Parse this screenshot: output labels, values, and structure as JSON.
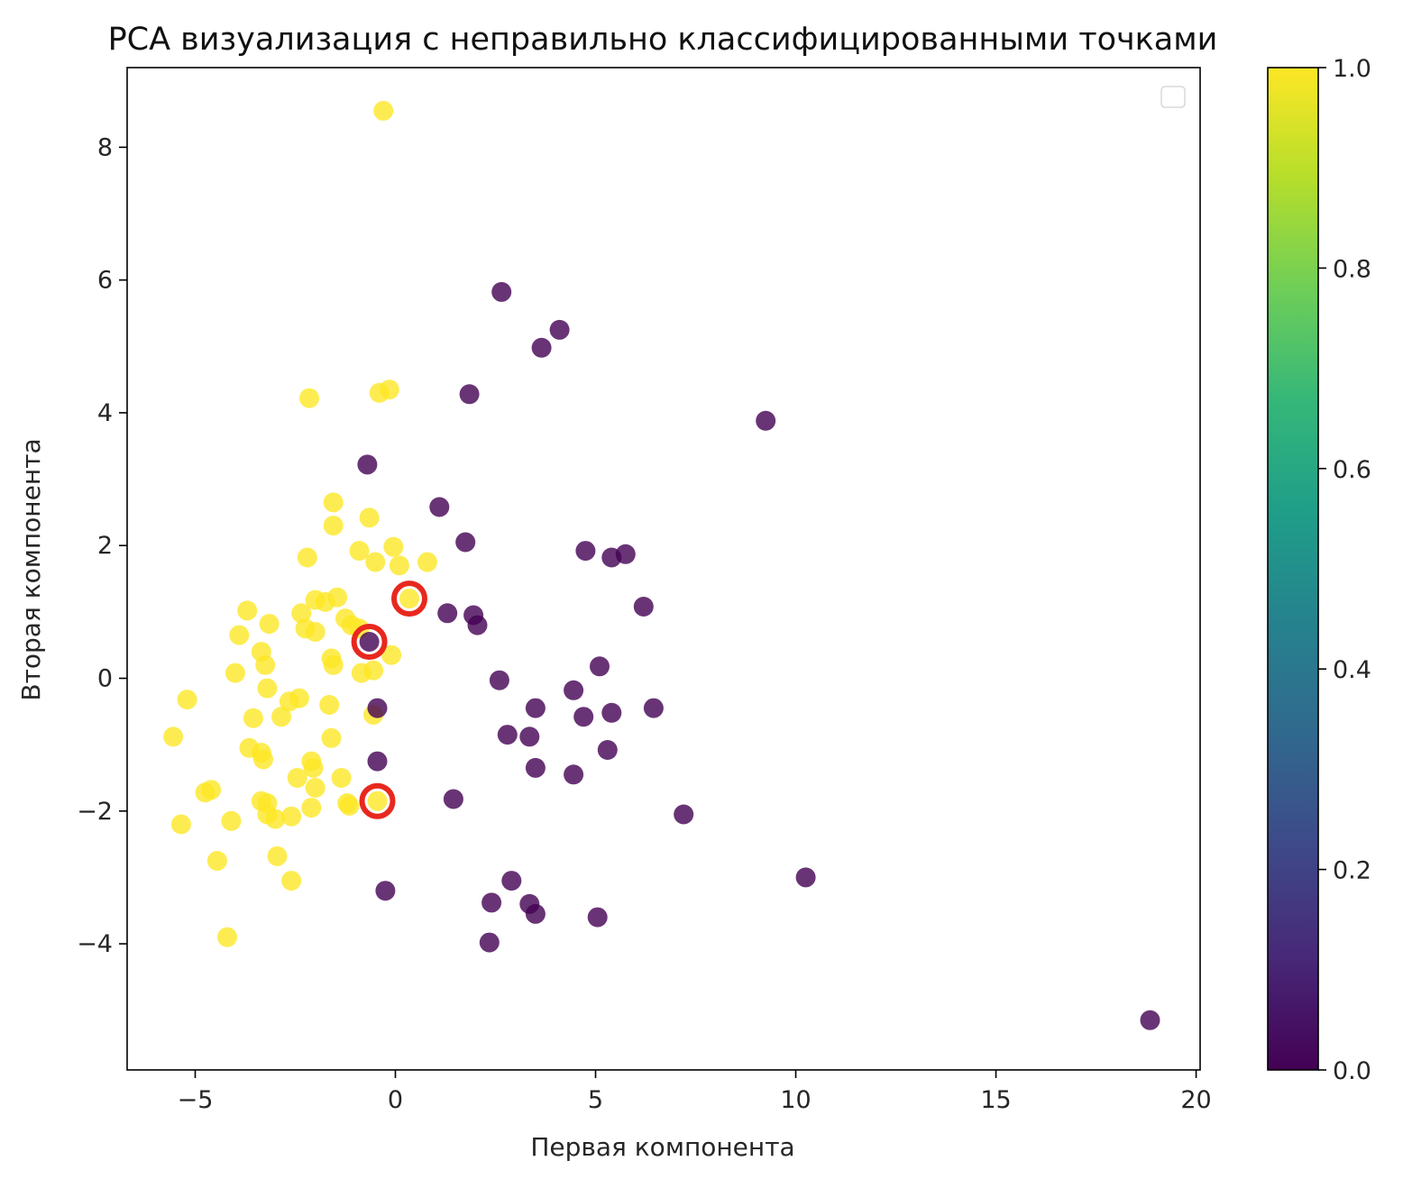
{
  "chart_data": {
    "type": "scatter",
    "title": "PCA визуализация с неправильно классифицированными точками",
    "xlabel": "Первая компонента",
    "ylabel": "Вторая компонента",
    "xlim": [
      -6.7,
      20.1
    ],
    "ylim": [
      -5.9,
      9.2
    ],
    "xticks": [
      -5,
      0,
      5,
      10,
      15,
      20
    ],
    "xtick_labels": [
      "−5",
      "0",
      "5",
      "10",
      "15",
      "20"
    ],
    "yticks": [
      -4,
      -2,
      0,
      2,
      4,
      6,
      8
    ],
    "ytick_labels": [
      "−4",
      "−2",
      "0",
      "2",
      "4",
      "6",
      "8"
    ],
    "grid": false,
    "legend": "top-right (empty)",
    "colormap": "viridis",
    "colorbar": {
      "range": [
        0.0,
        1.0
      ],
      "ticks": [
        0.0,
        0.2,
        0.4,
        0.6,
        0.8,
        1.0
      ],
      "tick_labels": [
        "0.0",
        "0.2",
        "0.4",
        "0.6",
        "0.8",
        "1.0"
      ],
      "colors": [
        "#440154",
        "#482878",
        "#3e4989",
        "#31688e",
        "#26828e",
        "#1f9e89",
        "#35b779",
        "#6ece58",
        "#b5de2b",
        "#fde725"
      ]
    },
    "series": [
      {
        "class_value": 1,
        "color": "#fde725",
        "points": [
          [
            -0.3,
            8.55
          ],
          [
            -2.15,
            4.22
          ],
          [
            -0.4,
            4.3
          ],
          [
            -0.15,
            4.35
          ],
          [
            -1.55,
            2.65
          ],
          [
            -0.65,
            2.42
          ],
          [
            -1.55,
            2.3
          ],
          [
            -0.9,
            1.92
          ],
          [
            -0.05,
            1.98
          ],
          [
            -2.2,
            1.82
          ],
          [
            -0.5,
            1.75
          ],
          [
            0.1,
            1.7
          ],
          [
            0.8,
            1.75
          ],
          [
            -2.0,
            1.18
          ],
          [
            -1.75,
            1.15
          ],
          [
            -1.45,
            1.22
          ],
          [
            -1.25,
            0.9
          ],
          [
            -1.1,
            0.8
          ],
          [
            -0.9,
            0.75
          ],
          [
            -2.35,
            0.98
          ],
          [
            -2.25,
            0.75
          ],
          [
            -2.0,
            0.7
          ],
          [
            -3.7,
            1.02
          ],
          [
            -3.15,
            0.82
          ],
          [
            -3.9,
            0.65
          ],
          [
            -3.35,
            0.4
          ],
          [
            -3.25,
            0.2
          ],
          [
            -1.6,
            0.3
          ],
          [
            -1.55,
            0.2
          ],
          [
            -0.85,
            0.08
          ],
          [
            -0.55,
            0.12
          ],
          [
            -0.1,
            0.35
          ],
          [
            -4.0,
            0.08
          ],
          [
            -3.2,
            -0.15
          ],
          [
            -2.65,
            -0.35
          ],
          [
            -2.4,
            -0.3
          ],
          [
            -1.65,
            -0.4
          ],
          [
            -5.2,
            -0.32
          ],
          [
            -3.55,
            -0.6
          ],
          [
            -2.85,
            -0.58
          ],
          [
            -0.55,
            -0.55
          ],
          [
            -5.55,
            -0.88
          ],
          [
            -1.6,
            -0.9
          ],
          [
            -3.65,
            -1.05
          ],
          [
            -3.35,
            -1.12
          ],
          [
            -3.3,
            -1.22
          ],
          [
            -2.1,
            -1.25
          ],
          [
            -2.05,
            -1.35
          ],
          [
            -2.45,
            -1.5
          ],
          [
            -1.35,
            -1.5
          ],
          [
            -4.75,
            -1.72
          ],
          [
            -4.6,
            -1.68
          ],
          [
            -2.0,
            -1.65
          ],
          [
            -3.35,
            -1.85
          ],
          [
            -3.2,
            -1.88
          ],
          [
            -1.2,
            -1.88
          ],
          [
            -1.15,
            -1.92
          ],
          [
            -2.1,
            -1.95
          ],
          [
            -3.2,
            -2.05
          ],
          [
            -3.0,
            -2.12
          ],
          [
            -2.6,
            -2.08
          ],
          [
            -5.35,
            -2.2
          ],
          [
            -4.1,
            -2.15
          ],
          [
            -2.95,
            -2.68
          ],
          [
            -4.45,
            -2.75
          ],
          [
            -2.6,
            -3.05
          ],
          [
            -4.2,
            -3.9
          ],
          [
            0.35,
            1.2
          ],
          [
            -0.45,
            -1.85
          ]
        ]
      },
      {
        "class_value": 0,
        "color": "#440154",
        "points": [
          [
            2.65,
            5.82
          ],
          [
            4.1,
            5.25
          ],
          [
            3.65,
            4.98
          ],
          [
            1.85,
            4.28
          ],
          [
            9.25,
            3.88
          ],
          [
            -0.7,
            3.22
          ],
          [
            1.1,
            2.58
          ],
          [
            1.75,
            2.05
          ],
          [
            4.75,
            1.92
          ],
          [
            5.4,
            1.82
          ],
          [
            5.75,
            1.87
          ],
          [
            6.2,
            1.08
          ],
          [
            1.3,
            0.98
          ],
          [
            1.95,
            0.95
          ],
          [
            2.05,
            0.8
          ],
          [
            5.1,
            0.18
          ],
          [
            2.6,
            -0.03
          ],
          [
            4.45,
            -0.18
          ],
          [
            6.45,
            -0.45
          ],
          [
            3.5,
            -0.45
          ],
          [
            4.7,
            -0.58
          ],
          [
            5.4,
            -0.52
          ],
          [
            -0.45,
            -0.45
          ],
          [
            2.8,
            -0.85
          ],
          [
            3.35,
            -0.88
          ],
          [
            5.3,
            -1.08
          ],
          [
            -0.45,
            -1.25
          ],
          [
            3.5,
            -1.35
          ],
          [
            4.45,
            -1.45
          ],
          [
            1.45,
            -1.82
          ],
          [
            7.2,
            -2.05
          ],
          [
            2.9,
            -3.05
          ],
          [
            10.25,
            -3.0
          ],
          [
            -0.25,
            -3.2
          ],
          [
            2.4,
            -3.38
          ],
          [
            3.35,
            -3.4
          ],
          [
            3.5,
            -3.55
          ],
          [
            5.05,
            -3.6
          ],
          [
            2.35,
            -3.98
          ],
          [
            18.85,
            -5.15
          ],
          [
            -0.65,
            0.55
          ]
        ]
      }
    ],
    "misclassified_highlight": {
      "edge_color": "#e8281e",
      "points": [
        [
          0.35,
          1.2
        ],
        [
          -0.65,
          0.55
        ],
        [
          -0.45,
          -1.85
        ]
      ]
    }
  }
}
